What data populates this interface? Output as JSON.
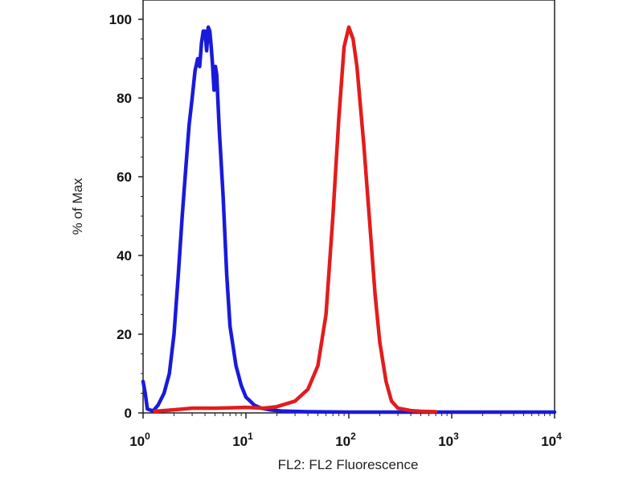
{
  "chart_data": {
    "type": "line",
    "xlabel": "FL2: FL2 Fluorescence",
    "ylabel": "% of Max",
    "x_scale": "log",
    "xlim": [
      1,
      10000
    ],
    "ylim": [
      0,
      100
    ],
    "x_ticks": [
      {
        "value": 1,
        "base": "10",
        "exp": "0"
      },
      {
        "value": 10,
        "base": "10",
        "exp": "1"
      },
      {
        "value": 100,
        "base": "10",
        "exp": "2"
      },
      {
        "value": 1000,
        "base": "10",
        "exp": "3"
      },
      {
        "value": 10000,
        "base": "10",
        "exp": "4"
      }
    ],
    "y_ticks": [
      {
        "value": 0,
        "label": "0"
      },
      {
        "value": 20,
        "label": "20"
      },
      {
        "value": 40,
        "label": "40"
      },
      {
        "value": 60,
        "label": "60"
      },
      {
        "value": 80,
        "label": "80"
      },
      {
        "value": 100,
        "label": "100"
      }
    ],
    "grid": false,
    "series": [
      {
        "color": "#1a1adb",
        "points": [
          [
            1.0,
            8
          ],
          [
            1.05,
            5
          ],
          [
            1.1,
            1
          ],
          [
            1.25,
            0.5
          ],
          [
            1.4,
            2
          ],
          [
            1.6,
            5
          ],
          [
            1.8,
            10
          ],
          [
            2.0,
            20
          ],
          [
            2.2,
            35
          ],
          [
            2.4,
            50
          ],
          [
            2.6,
            62
          ],
          [
            2.8,
            73
          ],
          [
            3.0,
            80
          ],
          [
            3.2,
            87
          ],
          [
            3.4,
            90
          ],
          [
            3.55,
            88
          ],
          [
            3.7,
            94
          ],
          [
            3.85,
            97
          ],
          [
            4.0,
            97
          ],
          [
            4.15,
            92
          ],
          [
            4.3,
            98
          ],
          [
            4.45,
            97
          ],
          [
            4.6,
            93
          ],
          [
            4.75,
            88
          ],
          [
            4.9,
            82
          ],
          [
            5.05,
            88
          ],
          [
            5.2,
            86
          ],
          [
            5.5,
            72
          ],
          [
            6.0,
            55
          ],
          [
            6.5,
            35
          ],
          [
            7.0,
            22
          ],
          [
            8.0,
            12
          ],
          [
            9.0,
            7
          ],
          [
            10.0,
            4
          ],
          [
            11.0,
            3
          ],
          [
            12.0,
            2
          ],
          [
            14.0,
            1.2
          ],
          [
            17.0,
            0.8
          ],
          [
            22.0,
            0.5
          ],
          [
            40.0,
            0.3
          ],
          [
            100.0,
            0.2
          ],
          [
            1000.0,
            0.2
          ],
          [
            10000.0,
            0.2
          ]
        ]
      },
      {
        "color": "#e31c1c",
        "points": [
          [
            1.3,
            0.4
          ],
          [
            2.0,
            0.8
          ],
          [
            3.0,
            1.2
          ],
          [
            5.0,
            1.2
          ],
          [
            10.0,
            1.4
          ],
          [
            15.0,
            1.2
          ],
          [
            20.0,
            1.6
          ],
          [
            30.0,
            3
          ],
          [
            40.0,
            6
          ],
          [
            50.0,
            12
          ],
          [
            60.0,
            25
          ],
          [
            70.0,
            50
          ],
          [
            80.0,
            75
          ],
          [
            90.0,
            93
          ],
          [
            100.0,
            98
          ],
          [
            110.0,
            95
          ],
          [
            120.0,
            88
          ],
          [
            140.0,
            68
          ],
          [
            160.0,
            48
          ],
          [
            180.0,
            30
          ],
          [
            200.0,
            18
          ],
          [
            230.0,
            8
          ],
          [
            260.0,
            3
          ],
          [
            300.0,
            1.2
          ],
          [
            400.0,
            0.6
          ],
          [
            500.0,
            0.4
          ],
          [
            700.0,
            0.3
          ]
        ]
      }
    ]
  }
}
